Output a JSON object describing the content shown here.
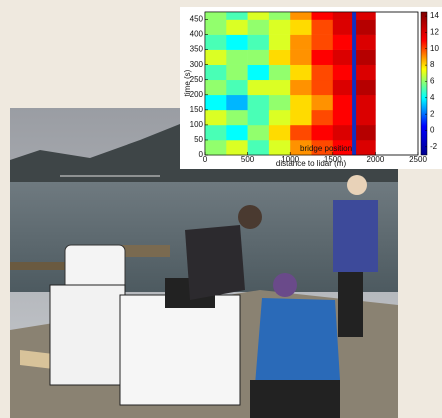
{
  "chart_data": {
    "type": "heatmap",
    "xlabel": "distance to lidar (m)",
    "ylabel": "time (s)",
    "xbins": [
      0,
      250,
      500,
      750,
      1000,
      1250,
      1500,
      1750,
      2000,
      2250,
      2500
    ],
    "ybins": [
      0,
      50,
      100,
      150,
      200,
      250,
      300,
      350,
      400,
      450,
      475
    ],
    "values": [
      [
        6,
        7,
        5,
        7,
        9,
        10,
        11,
        12,
        null,
        null
      ],
      [
        5,
        4,
        6,
        8,
        10,
        11,
        12,
        13,
        null,
        null
      ],
      [
        7,
        6,
        5,
        7,
        8,
        10,
        11,
        12,
        null,
        null
      ],
      [
        4,
        3,
        5,
        6,
        8,
        9,
        11,
        12,
        null,
        null
      ],
      [
        6,
        5,
        7,
        7,
        9,
        10,
        12,
        13,
        null,
        null
      ],
      [
        5,
        6,
        4,
        6,
        8,
        10,
        11,
        12,
        null,
        null
      ],
      [
        7,
        6,
        6,
        8,
        9,
        11,
        12,
        13,
        null,
        null
      ],
      [
        5,
        4,
        5,
        7,
        9,
        10,
        11,
        12,
        null,
        null
      ],
      [
        6,
        7,
        6,
        7,
        8,
        10,
        12,
        13,
        null,
        null
      ],
      [
        6,
        5,
        7,
        6,
        9,
        11,
        12,
        12,
        null,
        null
      ]
    ],
    "xlim": [
      0,
      2500
    ],
    "ylim": [
      0,
      475
    ],
    "xticks": [
      0,
      500,
      1000,
      1500,
      2000,
      2500
    ],
    "yticks": [
      0,
      50,
      100,
      150,
      200,
      250,
      300,
      350,
      400,
      450
    ],
    "clim": [
      -3,
      14.5
    ],
    "cticks": [
      -2,
      0,
      2,
      4,
      6,
      8,
      10,
      12,
      14
    ],
    "colormap": [
      "#00008f",
      "#0000ff",
      "#00ffff",
      "#ffff00",
      "#ff0000",
      "#800000"
    ],
    "bridge_x": 1750,
    "bridge_color": "#1030c0",
    "annotation": "bridge position"
  }
}
